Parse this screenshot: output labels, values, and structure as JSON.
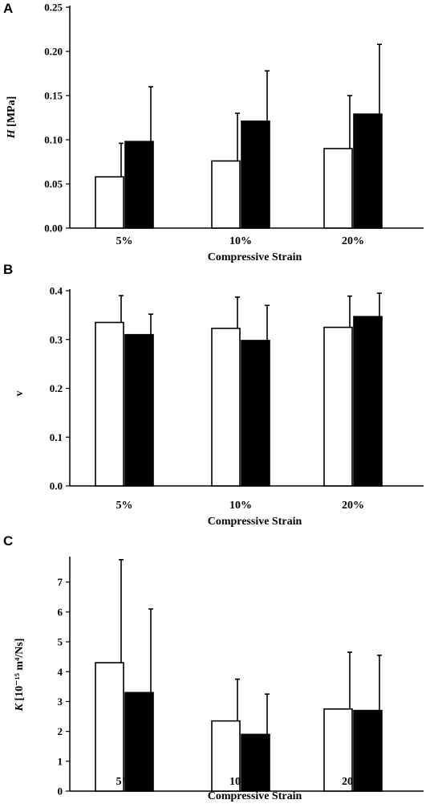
{
  "colors": {
    "open_bar": "#ffffff",
    "filled_bar": "#000000",
    "axis": "#000000"
  },
  "chart_data": [
    {
      "panel": "A",
      "type": "bar",
      "categories": [
        "5%",
        "10%",
        "20%"
      ],
      "xlabel": "Compressive Strain",
      "ylabel_italic": "H",
      "ylabel_rest": " [MPa]",
      "ylim": [
        0,
        0.25
      ],
      "yticks": [
        "0.00",
        "0.05",
        "0.10",
        "0.15",
        "0.20",
        "0.25"
      ],
      "grid": false,
      "series": [
        {
          "fill": "open",
          "values": [
            0.058,
            0.076,
            0.09
          ],
          "errors": [
            0.038,
            0.054,
            0.06
          ]
        },
        {
          "fill": "filled",
          "values": [
            0.098,
            0.121,
            0.129
          ],
          "errors": [
            0.062,
            0.057,
            0.079
          ]
        }
      ]
    },
    {
      "panel": "B",
      "type": "bar",
      "categories": [
        "5%",
        "10%",
        "20%"
      ],
      "xlabel": "Compressive Strain",
      "ylabel_italic": "",
      "ylabel_rest": "v",
      "ylim": [
        0,
        0.4
      ],
      "yticks": [
        "0.0",
        "0.1",
        "0.2",
        "0.3",
        "0.4"
      ],
      "grid": false,
      "series": [
        {
          "fill": "open",
          "values": [
            0.335,
            0.323,
            0.325
          ],
          "errors": [
            0.055,
            0.064,
            0.064
          ]
        },
        {
          "fill": "filled",
          "values": [
            0.31,
            0.298,
            0.347
          ],
          "errors": [
            0.042,
            0.072,
            0.048
          ]
        }
      ]
    },
    {
      "panel": "C",
      "type": "bar",
      "categories": [
        "5%",
        "10%",
        "20%"
      ],
      "xlabel": "Compressive Strain",
      "ylabel_italic": "K",
      "ylabel_rest": " [10⁻¹⁵ m⁴/Ns]",
      "ylim": [
        0,
        7.8
      ],
      "yticks": [
        "0",
        "1",
        "2",
        "3",
        "4",
        "5",
        "6",
        "7"
      ],
      "grid": false,
      "series": [
        {
          "fill": "open",
          "values": [
            4.3,
            2.35,
            2.75
          ],
          "errors": [
            3.45,
            1.4,
            1.9
          ]
        },
        {
          "fill": "filled",
          "values": [
            3.3,
            1.9,
            2.7
          ],
          "errors": [
            2.8,
            1.35,
            1.85
          ]
        }
      ]
    }
  ]
}
